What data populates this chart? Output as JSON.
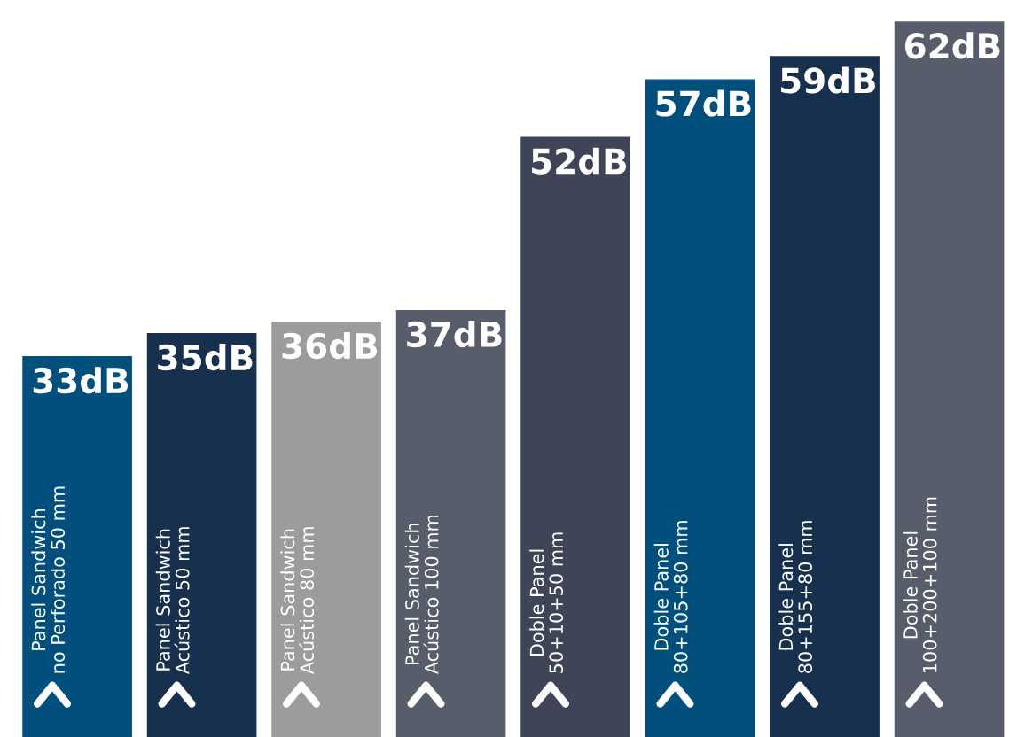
{
  "chart_data": {
    "type": "bar",
    "categories": [
      "Panel Sandwich\nno Perforado 50 mm",
      "Panel Sandwich\nAcústico 50 mm",
      "Panel Sandwich\nAcústico 80 mm",
      "Panel Sandwich\nAcústico 100 mm",
      "Doble Panel\n50+10+50 mm",
      "Doble Panel\n80+105+80 mm",
      "Doble Panel\n80+155+80 mm",
      "Doble Panel\n100+200+100 mm"
    ],
    "values": [
      33,
      35,
      36,
      37,
      52,
      57,
      59,
      62
    ],
    "colors": [
      "#004f7c",
      "#16304e",
      "#9d9c9a",
      "#575d6b",
      "#3f4556",
      "#004f7c",
      "#16304e",
      "#575d6b"
    ],
    "value_labels": [
      "33dB",
      "35dB",
      "36dB",
      "37dB",
      "52dB",
      "57dB",
      "59dB",
      "62dB"
    ]
  }
}
